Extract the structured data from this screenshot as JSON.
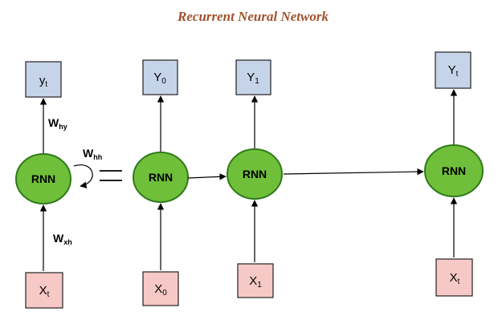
{
  "title": "Recurrent Neural Network",
  "rnn_label": "RNN",
  "folded": {
    "output": {
      "main": "y",
      "sub": "t"
    },
    "input": {
      "main": "X",
      "sub": "t"
    },
    "w_out": {
      "main": "W",
      "sub": "hy"
    },
    "w_rec": {
      "main": "W",
      "sub": "hh"
    },
    "w_in": {
      "main": "W",
      "sub": "xh"
    }
  },
  "equals_sign": "=",
  "unrolled": [
    {
      "output": {
        "main": "Y",
        "sub": "0"
      },
      "input": {
        "main": "X",
        "sub": "0"
      }
    },
    {
      "output": {
        "main": "Y",
        "sub": "1"
      },
      "input": {
        "main": "X",
        "sub": "1"
      }
    },
    {
      "output": {
        "main": "Y",
        "sub": "t"
      },
      "input": {
        "main": "X",
        "sub": "t"
      }
    }
  ],
  "colors": {
    "node": "#6fbf3a",
    "output_box": "#c6d4ea",
    "input_box": "#f6c9c6",
    "title": "#a0522d"
  }
}
